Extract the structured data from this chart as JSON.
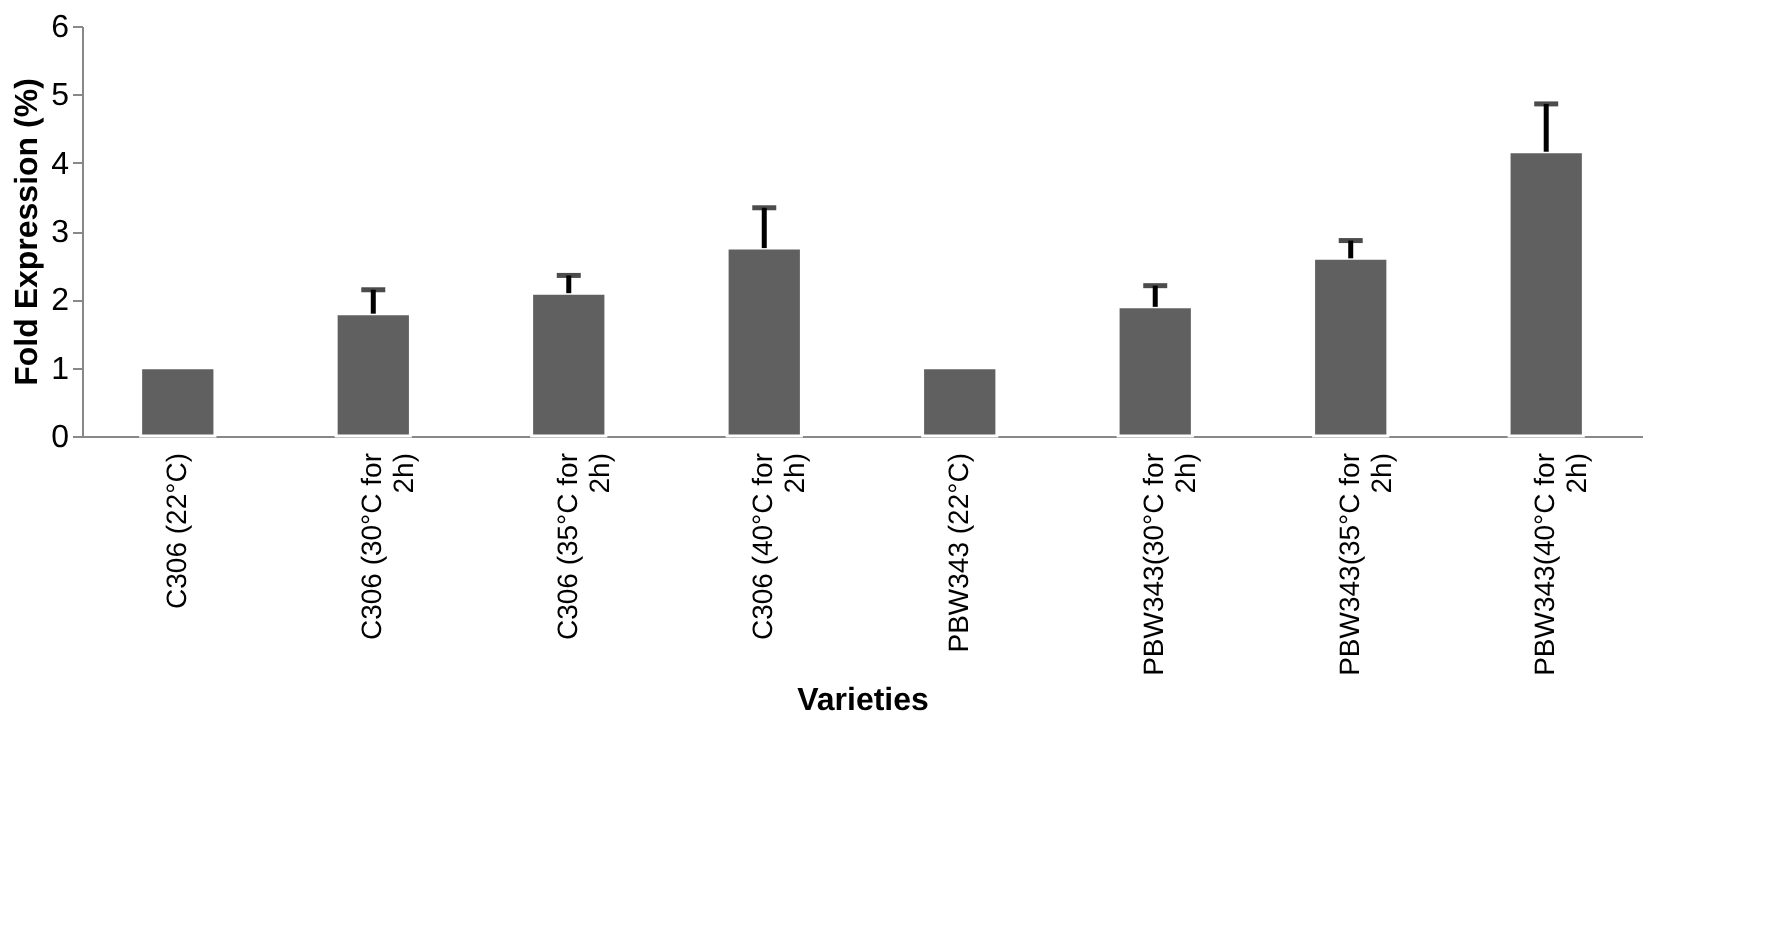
{
  "chart_data": {
    "type": "bar",
    "xlabel": "Varieties",
    "ylabel": "Fold Expression (%)",
    "categories": [
      "C306 (22°C)",
      "C306 (30°C for 2h)",
      "C306 (35°C for 2h)",
      "C306 (40°C for 2h)",
      "PBW343 (22°C)",
      "PBW343(30°C for 2h)",
      "PBW343(35°C for 2h)",
      "PBW343(40°C for 2h)"
    ],
    "values": [
      1,
      1.79,
      2.09,
      2.75,
      1,
      1.89,
      2.6,
      4.16
    ],
    "errors": [
      null,
      [
        1.79,
        2.14
      ],
      [
        2.09,
        2.35
      ],
      [
        2.75,
        3.34
      ],
      null,
      [
        1.89,
        2.2
      ],
      [
        2.6,
        2.86
      ],
      [
        4.16,
        4.86
      ]
    ],
    "color": "#606060",
    "ylim": [
      0,
      6
    ],
    "yticks": [
      0,
      1,
      2,
      3,
      4,
      5,
      6
    ],
    "grid": false
  }
}
